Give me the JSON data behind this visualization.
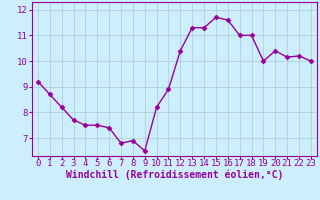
{
  "x": [
    0,
    1,
    2,
    3,
    4,
    5,
    6,
    7,
    8,
    9,
    10,
    11,
    12,
    13,
    14,
    15,
    16,
    17,
    18,
    19,
    20,
    21,
    22,
    23
  ],
  "y": [
    9.2,
    8.7,
    8.2,
    7.7,
    7.5,
    7.5,
    7.4,
    6.8,
    6.9,
    6.5,
    8.2,
    8.9,
    10.4,
    11.3,
    11.3,
    11.7,
    11.6,
    11.0,
    11.0,
    10.0,
    10.4,
    10.15,
    10.2,
    10.0
  ],
  "line_color": "#990099",
  "marker": "D",
  "markersize": 2.5,
  "linewidth": 1.0,
  "bg_color": "#cceeff",
  "grid_color": "#aacccc",
  "xlabel": "Windchill (Refroidissement éolien,°C)",
  "xlabel_color": "#990099",
  "xlabel_fontsize": 7.0,
  "tick_color": "#990099",
  "tick_fontsize": 6.5,
  "ylim": [
    6.3,
    12.3
  ],
  "yticks": [
    7,
    8,
    9,
    10,
    11,
    12
  ],
  "xlim": [
    -0.5,
    23.5
  ],
  "xticks": [
    0,
    1,
    2,
    3,
    4,
    5,
    6,
    7,
    8,
    9,
    10,
    11,
    12,
    13,
    14,
    15,
    16,
    17,
    18,
    19,
    20,
    21,
    22,
    23
  ]
}
